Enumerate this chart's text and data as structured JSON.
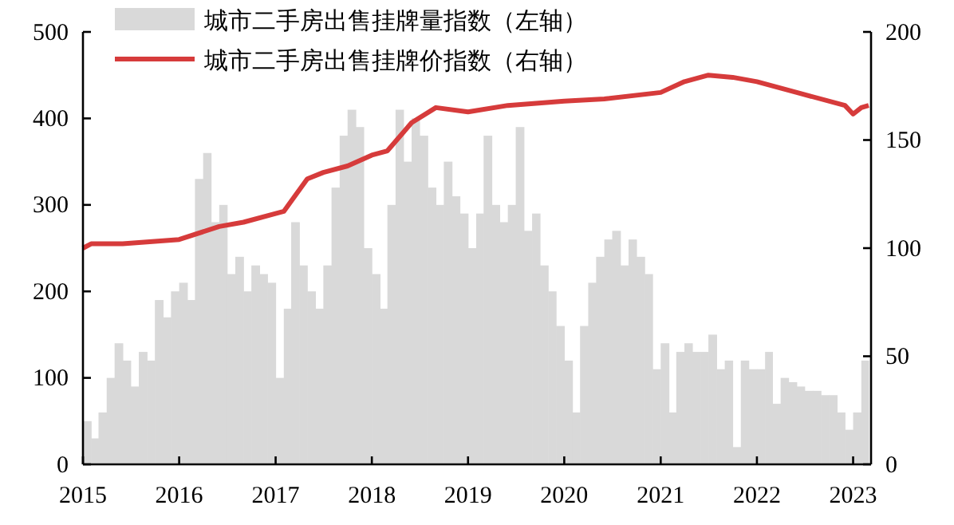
{
  "chart_data": {
    "type": "bar",
    "legend": "top",
    "xlim": [
      "2015-01-01",
      "2023-03-10"
    ],
    "xticks": [
      {
        "value": "2015-01-01",
        "label": "2015"
      },
      {
        "value": "2016-01-01",
        "label": "2016"
      },
      {
        "value": "2017-01-01",
        "label": "2017"
      },
      {
        "value": "2018-01-01",
        "label": "2018"
      },
      {
        "value": "2019-01-01",
        "label": "2019"
      },
      {
        "value": "2020-01-01",
        "label": "2020"
      },
      {
        "value": "2021-01-01",
        "label": "2021"
      },
      {
        "value": "2022-01-01",
        "label": "2022"
      },
      {
        "value": "2023-01-01",
        "label": "2023"
      }
    ],
    "ylim": [
      0,
      500
    ],
    "yticks": [
      0,
      100,
      200,
      300,
      400,
      500
    ],
    "y2lim": [
      0,
      200
    ],
    "y2ticks": [
      0,
      50,
      100,
      150,
      200
    ],
    "x": [
      "2015-01",
      "2015-02",
      "2015-03",
      "2015-04",
      "2015-05",
      "2015-06",
      "2015-07",
      "2015-08",
      "2015-09",
      "2015-10",
      "2015-11",
      "2015-12",
      "2016-01",
      "2016-02",
      "2016-03",
      "2016-04",
      "2016-05",
      "2016-06",
      "2016-07",
      "2016-08",
      "2016-09",
      "2016-10",
      "2016-11",
      "2016-12",
      "2017-01",
      "2017-02",
      "2017-03",
      "2017-04",
      "2017-05",
      "2017-06",
      "2017-07",
      "2017-08",
      "2017-09",
      "2017-10",
      "2017-11",
      "2017-12",
      "2018-01",
      "2018-02",
      "2018-03",
      "2018-04",
      "2018-05",
      "2018-06",
      "2018-07",
      "2018-08",
      "2018-09",
      "2018-10",
      "2018-11",
      "2018-12",
      "2019-01",
      "2019-02",
      "2019-03",
      "2019-04",
      "2019-05",
      "2019-06",
      "2019-07",
      "2019-08",
      "2019-09",
      "2019-10",
      "2019-11",
      "2019-12",
      "2020-01",
      "2020-02",
      "2020-03",
      "2020-04",
      "2020-05",
      "2020-06",
      "2020-07",
      "2020-08",
      "2020-09",
      "2020-10",
      "2020-11",
      "2020-12",
      "2021-01",
      "2021-02",
      "2021-03",
      "2021-04",
      "2021-05",
      "2021-06",
      "2021-07",
      "2021-08",
      "2021-09",
      "2021-10",
      "2021-11",
      "2021-12",
      "2022-01",
      "2022-02",
      "2022-03",
      "2022-04",
      "2022-05",
      "2022-06",
      "2022-07",
      "2022-08",
      "2022-09",
      "2022-10",
      "2022-11",
      "2022-12",
      "2023-01",
      "2023-02"
    ],
    "series": [
      {
        "name": "城市二手房出售挂牌量指数（左轴）",
        "color": "#d9d9d9",
        "values": [
          50,
          30,
          60,
          100,
          140,
          120,
          90,
          130,
          120,
          190,
          170,
          200,
          210,
          190,
          330,
          360,
          280,
          300,
          220,
          240,
          200,
          230,
          220,
          210,
          100,
          180,
          280,
          230,
          200,
          180,
          230,
          320,
          380,
          410,
          390,
          250,
          220,
          180,
          300,
          410,
          350,
          400,
          380,
          320,
          300,
          350,
          310,
          290,
          250,
          290,
          380,
          300,
          280,
          300,
          390,
          270,
          290,
          230,
          200,
          160,
          120,
          60,
          160,
          210,
          240,
          260,
          270,
          230,
          260,
          240,
          220,
          110,
          140,
          60,
          130,
          140,
          130,
          130,
          150,
          110,
          120,
          20,
          120,
          110,
          110,
          130,
          70,
          100,
          95,
          90,
          85,
          85,
          80,
          80,
          60,
          40,
          60,
          120
        ]
      },
      {
        "name": "城市二手房出售挂牌价指数（右轴）",
        "type": "line",
        "axis": "y2",
        "color": "#d63b3b",
        "line_style": "solid",
        "marker": "none",
        "x": [
          "2015-01",
          "2015-02",
          "2015-06",
          "2016-01",
          "2016-06",
          "2016-09",
          "2017-01",
          "2017-02",
          "2017-05",
          "2017-07",
          "2017-10",
          "2018-01",
          "2018-03",
          "2018-06",
          "2018-09",
          "2019-01",
          "2019-06",
          "2020-01",
          "2020-06",
          "2021-01",
          "2021-04",
          "2021-07",
          "2021-10",
          "2022-01",
          "2022-06",
          "2022-12",
          "2023-01",
          "2023-02",
          "2023-03"
        ],
        "values": [
          100,
          102,
          102,
          104,
          110,
          112,
          116,
          117,
          132,
          135,
          138,
          143,
          145,
          158,
          165,
          163,
          166,
          168,
          169,
          172,
          177,
          180,
          179,
          177,
          172,
          166,
          162,
          165,
          166
        ]
      }
    ]
  }
}
